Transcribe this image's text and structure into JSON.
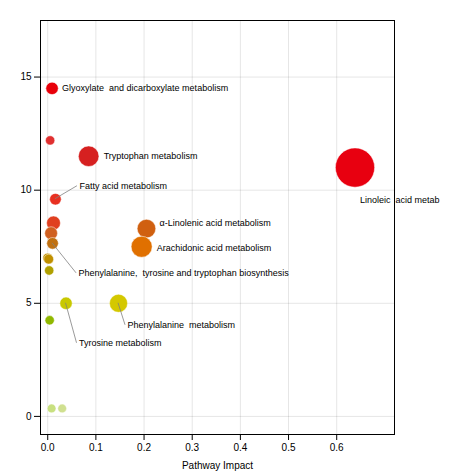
{
  "chart_data": {
    "type": "scatter",
    "xlabel": "Pathway Impact",
    "x": [
      0.009,
      0.085,
      0.638,
      0.016,
      0.205,
      0.195,
      0.0,
      0.147,
      0.038,
      0.005,
      0.012,
      0.007,
      0.01,
      0.002,
      0.003,
      0.004,
      0.008,
      0.03
    ],
    "y": [
      14.5,
      11.5,
      11.0,
      9.6,
      8.3,
      7.5,
      7.0,
      5.0,
      5.0,
      12.2,
      8.55,
      8.1,
      7.65,
      6.95,
      6.45,
      4.25,
      0.35,
      0.35
    ],
    "sizes": [
      80,
      220,
      800,
      70,
      180,
      230,
      50,
      170,
      80,
      45,
      100,
      85,
      70,
      50,
      45,
      45,
      40,
      40
    ],
    "colors": [
      "#e8000a",
      "#d62020",
      "#e80010",
      "#e83020",
      "#d06010",
      "#e07000",
      "#c09000",
      "#d4c800",
      "#c8c800",
      "#e03030",
      "#e04020",
      "#d06020",
      "#c07010",
      "#c09000",
      "#b0a000",
      "#90b800",
      "#c8e080",
      "#d0e090"
    ],
    "labels": [
      "Glyoxylate  and dicarboxylate metabolism",
      "Tryptophan metabolism",
      "Linoleic  acid metab",
      "Fatty acid metabolism",
      "α-Linolenic acid metabolism",
      "Arachidonic acid metabolism",
      null,
      "Phenylalanine  metabolism",
      "Tyrosine metabolism",
      null,
      null,
      null,
      "Phenylalanine,  tyrosine and tryptophan biosynthesis",
      null,
      null,
      null,
      null,
      null
    ],
    "xlim": [
      -0.015,
      0.72
    ],
    "ylim": [
      -0.8,
      17.5
    ],
    "xticks": [
      {
        "value": 0.0,
        "label": "0.0"
      },
      0.1,
      0.2,
      0.3,
      0.4,
      0.5,
      0.6
    ],
    "yticks": [
      0,
      5,
      10,
      15
    ],
    "grid": true
  }
}
